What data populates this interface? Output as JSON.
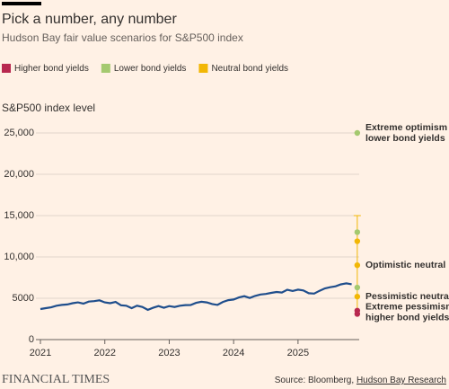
{
  "chart_data": {
    "type": "line",
    "title": "Pick a number, any number",
    "subtitle": "Hudson Bay fair value scenarios for S&P500 index",
    "y_label": "S&P500 index level",
    "grid": true,
    "xlim": [
      2020.93,
      2025.95
    ],
    "xticks": [
      2021,
      2022,
      2023,
      2024,
      2025
    ],
    "ylim": [
      0,
      25000
    ],
    "yticks": [
      0,
      5000,
      {
        "value": 10000,
        "label": "10,000"
      },
      {
        "value": 15000,
        "label": "15,000"
      },
      {
        "value": 20000,
        "label": "20,000"
      },
      {
        "value": 25000,
        "label": "25,000"
      }
    ],
    "line": {
      "color": "#1f4e8c",
      "x": [
        2021.0,
        2021.083,
        2021.167,
        2021.25,
        2021.333,
        2021.417,
        2021.5,
        2021.583,
        2021.667,
        2021.75,
        2021.833,
        2021.917,
        2022.0,
        2022.083,
        2022.167,
        2022.25,
        2022.333,
        2022.417,
        2022.5,
        2022.583,
        2022.667,
        2022.75,
        2022.833,
        2022.917,
        2023.0,
        2023.083,
        2023.167,
        2023.25,
        2023.333,
        2023.417,
        2023.5,
        2023.583,
        2023.667,
        2023.75,
        2023.833,
        2023.917,
        2024.0,
        2024.083,
        2024.167,
        2024.25,
        2024.333,
        2024.417,
        2024.5,
        2024.583,
        2024.667,
        2024.75,
        2024.833,
        2024.917,
        2025.0,
        2025.083,
        2025.167,
        2025.25,
        2025.333,
        2025.417,
        2025.5,
        2025.583,
        2025.667,
        2025.75,
        2025.833
      ],
      "values": [
        3700,
        3800,
        3900,
        4100,
        4200,
        4250,
        4400,
        4500,
        4350,
        4600,
        4650,
        4750,
        4500,
        4400,
        4550,
        4150,
        4100,
        3800,
        4100,
        3950,
        3600,
        3850,
        4050,
        3850,
        4050,
        3950,
        4100,
        4170,
        4180,
        4450,
        4580,
        4500,
        4300,
        4200,
        4550,
        4770,
        4850,
        5100,
        5250,
        5030,
        5280,
        5460,
        5520,
        5650,
        5760,
        5700,
        6030,
        5880,
        6040,
        5950,
        5610,
        5570,
        5900,
        6200,
        6340,
        6450,
        6690,
        6800,
        6700
      ]
    },
    "whisker": {
      "x": 2025.92,
      "low": 3000,
      "high": 15000,
      "color": "#f2b705"
    },
    "series": [
      {
        "name": "Higher bond yields",
        "color": "#b8284f",
        "x": [
          2025.92,
          2025.92
        ],
        "values": [
          3500,
          3100
        ]
      },
      {
        "name": "Lower bond yields",
        "color": "#a4c96f",
        "x": [
          2025.92,
          2025.92,
          2025.92
        ],
        "values": [
          25000,
          13000,
          6300
        ]
      },
      {
        "name": "Neutral bond yields",
        "color": "#f2b705",
        "x": [
          2025.92,
          2025.92,
          2025.92
        ],
        "values": [
          11900,
          9000,
          5200
        ]
      }
    ],
    "annotations": [
      {
        "y": 25000,
        "lines": [
          "Extreme optimism",
          "lower bond yields"
        ]
      },
      {
        "y": 9000,
        "lines": [
          "Optimistic neutral"
        ]
      },
      {
        "y": 5200,
        "lines": [
          "Pessimistic neutral"
        ]
      },
      {
        "y": 3300,
        "lines": [
          "Extreme pessimism",
          "higher bond yields"
        ]
      }
    ],
    "source": {
      "prefix": "Source: Bloomberg, ",
      "link": "Hudson Bay Research"
    },
    "brand": "FINANCIAL TIMES"
  }
}
